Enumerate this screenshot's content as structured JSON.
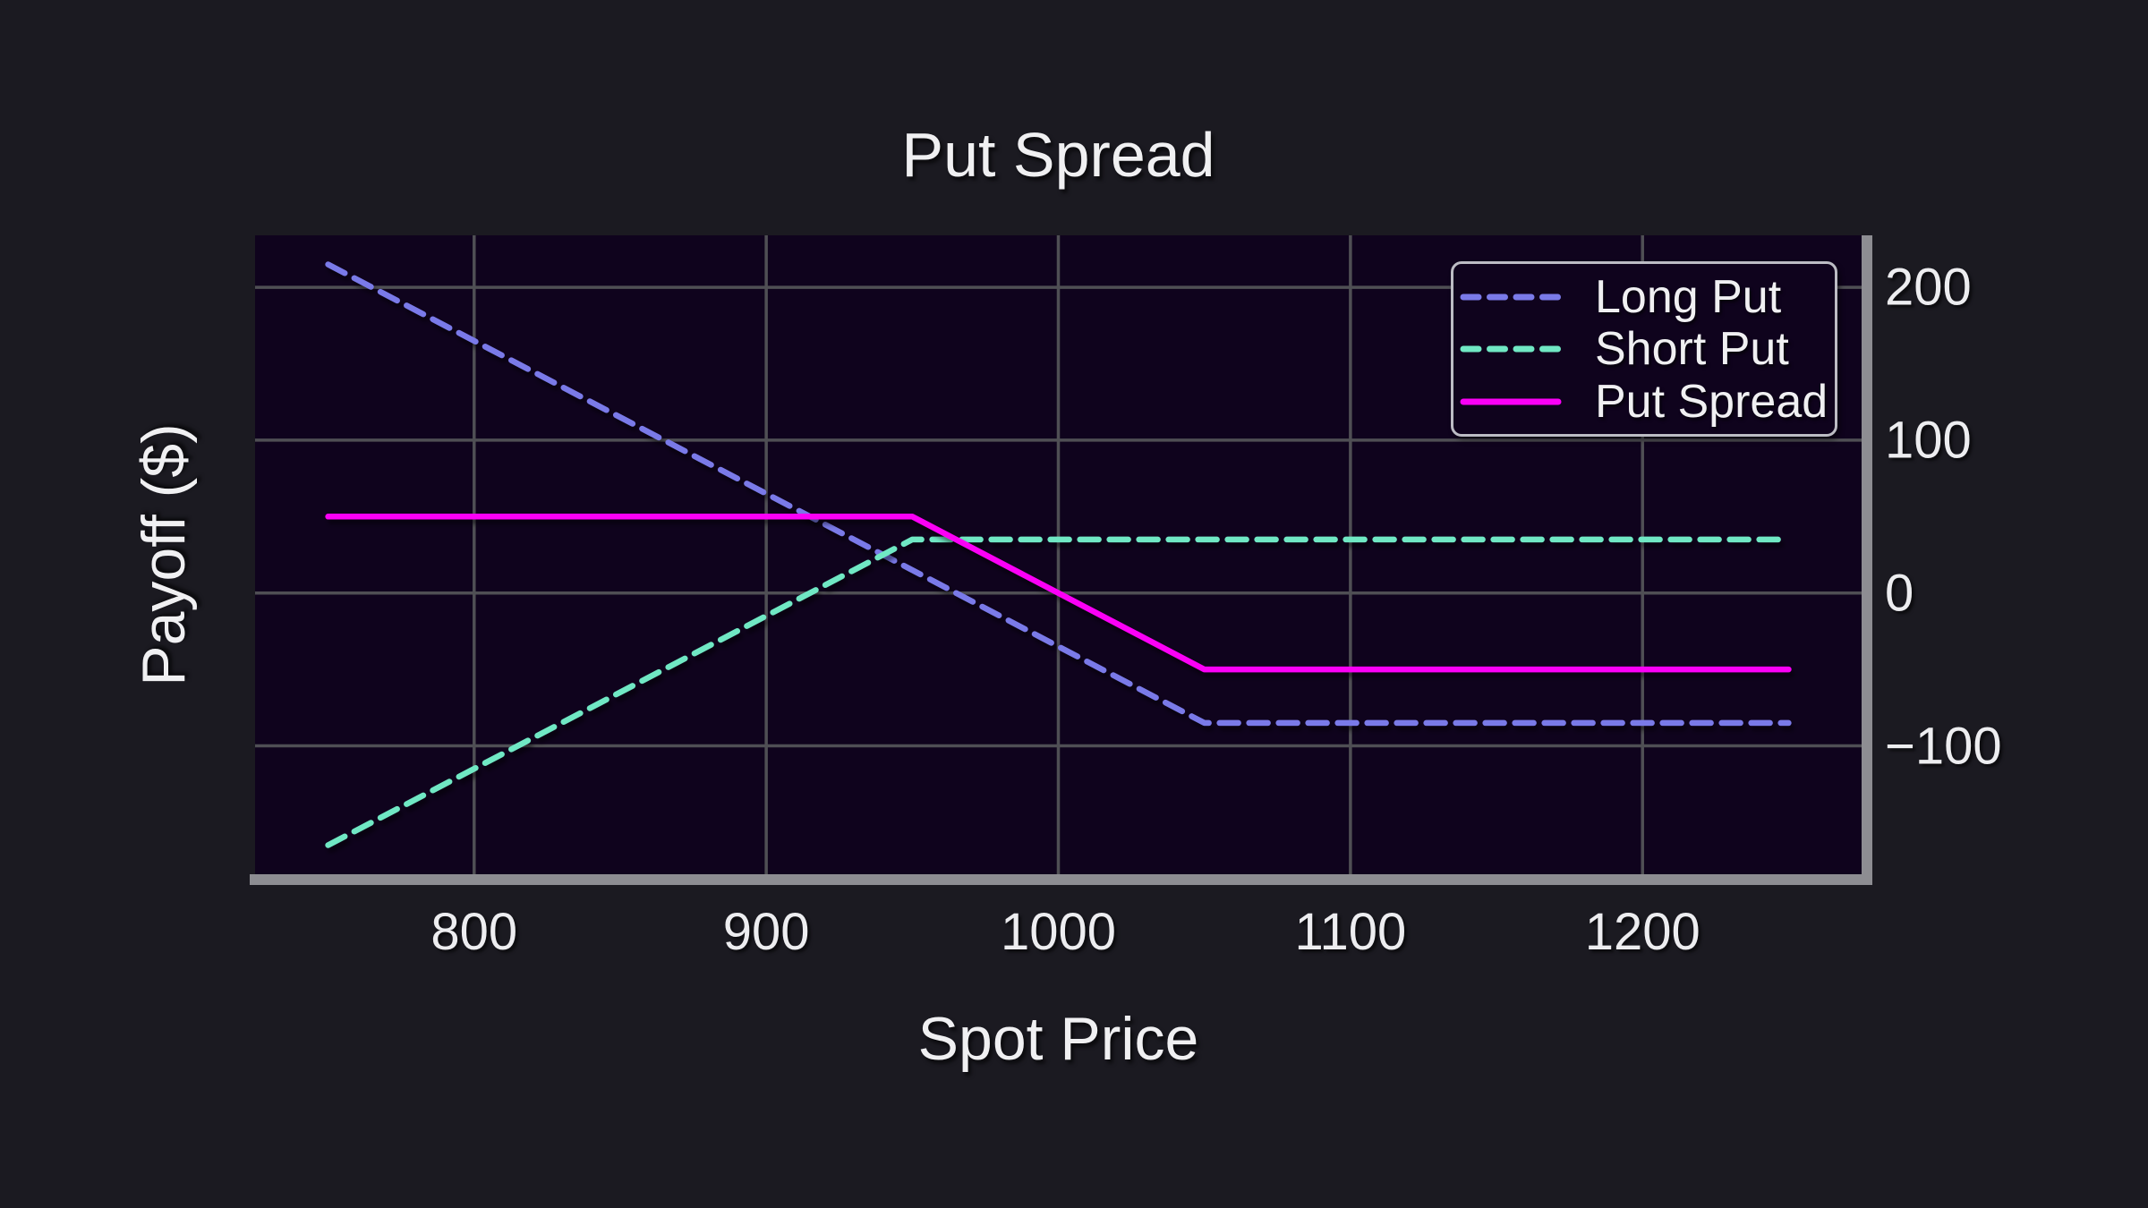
{
  "chart_data": {
    "type": "line",
    "title": "Put Spread",
    "xlabel": "Spot Price",
    "ylabel": "Payoff ($)",
    "xlim": [
      725,
      1275
    ],
    "ylim": [
      -184,
      234
    ],
    "xticks": [
      {
        "value": 800,
        "label": "800"
      },
      {
        "value": 900,
        "label": "900"
      },
      {
        "value": 1000,
        "label": "1000"
      },
      {
        "value": 1100,
        "label": "1100"
      },
      {
        "value": 1200,
        "label": "1200"
      }
    ],
    "yticks": [
      {
        "value": 200,
        "label": "200"
      },
      {
        "value": 100,
        "label": "100"
      },
      {
        "value": 0,
        "label": "0"
      },
      {
        "value": -100,
        "label": "−100"
      }
    ],
    "yticks_side": "right",
    "grid": true,
    "legend_position": "upper right",
    "series": [
      {
        "name": "Long Put",
        "color": "#7a7ae8",
        "style": "dashed",
        "points": [
          [
            750,
            215
          ],
          [
            1050,
            -85
          ],
          [
            1250,
            -85
          ]
        ]
      },
      {
        "name": "Short Put",
        "color": "#70e8c4",
        "style": "dashed",
        "points": [
          [
            750,
            -165
          ],
          [
            950,
            35
          ],
          [
            1250,
            35
          ]
        ]
      },
      {
        "name": "Put Spread",
        "color": "#fb00f6",
        "style": "solid",
        "points": [
          [
            750,
            50
          ],
          [
            950,
            50
          ],
          [
            1050,
            -50
          ],
          [
            1250,
            -50
          ]
        ]
      }
    ],
    "colors": {
      "figure_bg": "#1b1a21",
      "axes_bg": "#0f031d",
      "grid": "#4f4f54",
      "spine": "#8d8d92",
      "text": "#ededf0",
      "legend_border": "#bcbcc4"
    }
  }
}
